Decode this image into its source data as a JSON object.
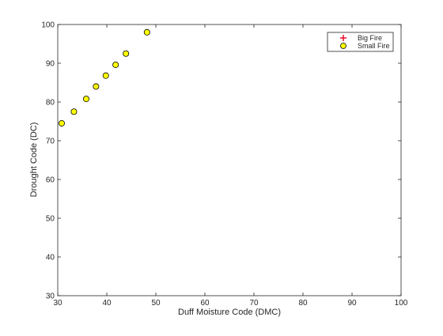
{
  "chart_data": {
    "type": "scatter",
    "title": "",
    "xlabel": "Duff Moisture Code (DMC)",
    "ylabel": "Drought Code (DC)",
    "xlim": [
      30,
      100
    ],
    "ylim": [
      30,
      100
    ],
    "xticks": [
      30,
      40,
      50,
      60,
      70,
      80,
      90,
      100
    ],
    "yticks": [
      30,
      40,
      50,
      60,
      70,
      80,
      90,
      100
    ],
    "grid": false,
    "legend_position": "top-right",
    "series": [
      {
        "name": "Big Fire",
        "marker": "plus",
        "color": "#e8001c",
        "x": [],
        "y": []
      },
      {
        "name": "Small Fire",
        "marker": "circle",
        "color": "#ffff00",
        "edge_color": "#000000",
        "x": [
          30.8,
          33.3,
          35.8,
          37.8,
          39.8,
          41.8,
          43.9,
          48.2
        ],
        "y": [
          74.5,
          77.5,
          80.8,
          84.0,
          86.8,
          89.6,
          92.5,
          98.0
        ]
      }
    ]
  }
}
